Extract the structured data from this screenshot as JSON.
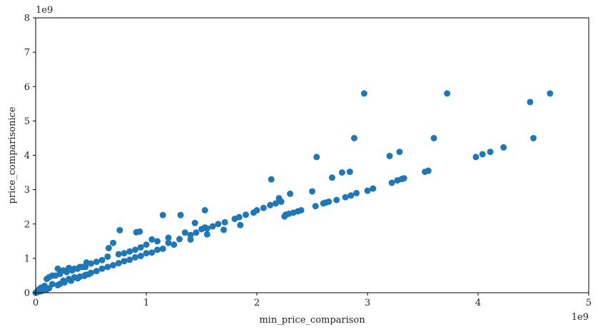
{
  "chart_data": {
    "type": "scatter",
    "title": "",
    "xlabel": "min_price_comparison",
    "ylabel": "price_comparisonice",
    "x_offset_label": "1e9",
    "y_offset_label": "1e9",
    "xlim": [
      0,
      5
    ],
    "ylim": [
      0,
      8
    ],
    "x_ticks": [
      "0",
      "1",
      "2",
      "3",
      "4",
      "5"
    ],
    "y_ticks": [
      "0",
      "1",
      "2",
      "3",
      "4",
      "5",
      "6",
      "7",
      "8"
    ],
    "grid": false,
    "point_color": "#1f77b4",
    "series": [
      {
        "x": [
          2.97,
          3.72,
          4.65,
          4.47,
          2.88,
          3.6,
          4.5,
          2.54,
          2.13,
          2.77,
          2.84,
          3.2,
          3.29,
          3.98,
          4.04,
          4.11,
          4.23,
          3.33,
          3.52,
          3.55,
          2.68,
          2.9,
          3.0,
          3.05,
          3.22,
          3.27,
          3.31,
          2.6,
          2.62,
          2.65,
          2.72,
          2.8,
          2.85,
          2.53,
          2.33,
          2.37,
          2.4,
          2.22,
          2.17,
          2.12,
          2.06,
          2.0,
          2.26,
          2.29,
          1.53,
          1.44,
          1.31,
          1.15,
          0.76,
          0.66,
          0.94,
          0.91,
          1.05,
          1.53,
          1.71,
          1.84,
          1.9,
          1.97,
          2.2,
          2.3,
          2.5,
          2.25,
          1.45,
          1.55,
          1.2,
          1.3,
          1.4,
          1.6,
          0.3,
          0.35,
          0.4,
          0.25,
          0.2,
          0.15,
          0.46,
          0.7,
          0.8,
          0.9,
          0.45,
          0.6,
          0.5,
          0.65,
          0.75,
          0.85,
          0.95,
          1.0,
          1.1,
          0.55,
          1.2,
          1.35,
          1.5,
          1.65,
          1.8,
          0.1,
          0.12,
          0.18,
          0.22,
          0.28,
          0.33,
          0.38,
          0.42,
          0.05,
          0.08,
          0.03,
          0.02,
          0.25,
          0.3,
          0.35,
          0.15,
          0.5,
          0.6,
          0.7,
          0.8,
          0.9,
          1.0,
          1.1,
          1.25,
          1.4,
          1.55,
          1.7,
          1.85,
          0.4,
          0.45,
          0.55,
          0.65,
          0.75,
          0.85,
          0.95,
          1.05,
          1.15,
          0.2,
          0.22,
          0.26,
          0.32,
          0.38,
          0.44,
          0.48,
          0.1,
          0.12,
          0.07,
          0.04,
          0.01,
          0.0,
          0.06,
          0.09
        ],
        "y": [
          5.8,
          5.8,
          5.8,
          5.55,
          4.5,
          4.5,
          4.5,
          3.95,
          3.3,
          3.5,
          3.52,
          3.98,
          4.1,
          3.95,
          4.03,
          4.1,
          4.23,
          3.33,
          3.52,
          3.55,
          3.35,
          2.9,
          2.97,
          3.03,
          3.2,
          3.27,
          3.31,
          2.6,
          2.62,
          2.65,
          2.7,
          2.78,
          2.83,
          2.52,
          2.33,
          2.37,
          2.4,
          2.65,
          2.6,
          2.55,
          2.47,
          2.4,
          2.27,
          2.3,
          2.4,
          2.03,
          2.26,
          2.26,
          1.82,
          1.3,
          1.78,
          1.76,
          1.55,
          1.9,
          2.05,
          2.2,
          2.27,
          2.33,
          2.75,
          2.88,
          2.95,
          2.22,
          1.75,
          1.87,
          1.45,
          1.56,
          1.68,
          1.93,
          0.72,
          0.7,
          0.75,
          0.65,
          0.7,
          0.5,
          0.88,
          1.45,
          1.15,
          1.25,
          0.75,
          0.95,
          0.85,
          1.05,
          1.12,
          1.2,
          1.32,
          1.4,
          1.5,
          0.9,
          1.6,
          1.75,
          1.85,
          2.0,
          2.15,
          0.4,
          0.45,
          0.5,
          0.55,
          0.6,
          0.65,
          0.7,
          0.75,
          0.15,
          0.2,
          0.1,
          0.05,
          0.35,
          0.4,
          0.45,
          0.25,
          0.58,
          0.7,
          0.8,
          0.92,
          1.03,
          1.15,
          1.25,
          1.4,
          1.55,
          1.7,
          1.83,
          1.97,
          0.47,
          0.52,
          0.63,
          0.75,
          0.86,
          0.96,
          1.07,
          1.17,
          1.28,
          0.22,
          0.26,
          0.3,
          0.35,
          0.42,
          0.49,
          0.54,
          0.1,
          0.13,
          0.08,
          0.04,
          0.01,
          0.0,
          0.06,
          0.1
        ]
      }
    ]
  }
}
